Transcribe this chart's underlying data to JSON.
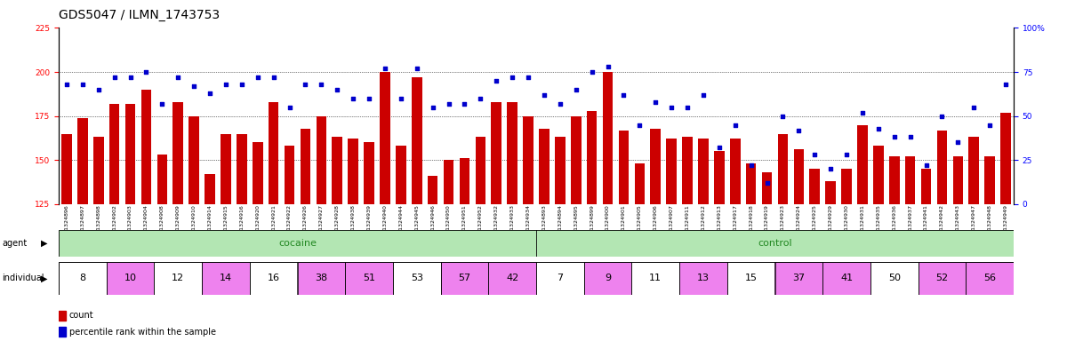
{
  "title": "GDS5047 / ILMN_1743753",
  "samples_cocaine": [
    "GSM1324896",
    "GSM1324897",
    "GSM1324898",
    "GSM1324902",
    "GSM1324903",
    "GSM1324904",
    "GSM1324908",
    "GSM1324909",
    "GSM1324910",
    "GSM1324914",
    "GSM1324915",
    "GSM1324916",
    "GSM1324920",
    "GSM1324921",
    "GSM1324922",
    "GSM1324926",
    "GSM1324927",
    "GSM1324928",
    "GSM1324938",
    "GSM1324939",
    "GSM1324940",
    "GSM1324944",
    "GSM1324945",
    "GSM1324946",
    "GSM1324950",
    "GSM1324951",
    "GSM1324952",
    "GSM1324932",
    "GSM1324933",
    "GSM1324934"
  ],
  "samples_control": [
    "GSM1324893",
    "GSM1324894",
    "GSM1324895",
    "GSM1324899",
    "GSM1324900",
    "GSM1324901",
    "GSM1324905",
    "GSM1324906",
    "GSM1324907",
    "GSM1324911",
    "GSM1324912",
    "GSM1324913",
    "GSM1324917",
    "GSM1324918",
    "GSM1324919",
    "GSM1324923",
    "GSM1324924",
    "GSM1324925",
    "GSM1324929",
    "GSM1324930",
    "GSM1324931",
    "GSM1324935",
    "GSM1324936",
    "GSM1324937",
    "GSM1324941",
    "GSM1324942",
    "GSM1324943",
    "GSM1324947",
    "GSM1324948",
    "GSM1324949"
  ],
  "counts_cocaine": [
    165,
    174,
    163,
    182,
    182,
    190,
    153,
    183,
    175,
    142,
    165,
    165,
    160,
    183,
    158,
    168,
    175,
    163,
    162,
    160,
    200,
    158,
    197,
    141,
    150,
    151,
    163,
    183,
    183,
    175
  ],
  "counts_control": [
    168,
    163,
    175,
    178,
    200,
    167,
    148,
    168,
    162,
    163,
    162,
    155,
    162,
    148,
    143,
    165,
    156,
    145,
    138,
    145,
    170,
    158,
    152,
    152,
    145,
    167,
    152,
    163,
    152,
    177
  ],
  "pct_cocaine": [
    68,
    68,
    65,
    72,
    72,
    75,
    57,
    72,
    67,
    63,
    68,
    68,
    72,
    72,
    55,
    68,
    68,
    65,
    60,
    60,
    77,
    60,
    77,
    55,
    57,
    57,
    60,
    70,
    72,
    72
  ],
  "pct_control": [
    62,
    57,
    65,
    75,
    78,
    62,
    45,
    58,
    55,
    55,
    62,
    32,
    45,
    22,
    12,
    50,
    42,
    28,
    20,
    28,
    52,
    43,
    38,
    38,
    22,
    50,
    35,
    55,
    45,
    68
  ],
  "ylim_left": [
    125,
    225
  ],
  "ylim_right": [
    0,
    100
  ],
  "yticks_left": [
    125,
    150,
    175,
    200,
    225
  ],
  "yticks_right": [
    0,
    25,
    50,
    75,
    100
  ],
  "bar_color": "#cc0000",
  "dot_color": "#0000cc",
  "cocaine_bg": "#b3e6b3",
  "control_bg": "#b3e6b3",
  "individual_bg_pink": "#ee82ee",
  "individual_bg_white": "#ffffff",
  "agent_label_color": "#228822",
  "title_fontsize": 10,
  "tick_fontsize": 6.5,
  "xtick_fontsize": 4.5,
  "label_fontsize": 8,
  "indiv_groups_cocaine": [
    "8",
    "10",
    "12",
    "14",
    "16",
    "38",
    "51",
    "53",
    "57",
    "42"
  ],
  "indiv_groups_control": [
    "7",
    "9",
    "11",
    "13",
    "15",
    "37",
    "41",
    "50",
    "52",
    "56"
  ],
  "indiv_colors_cocaine": [
    0,
    1,
    0,
    1,
    0,
    1,
    1,
    0,
    1,
    1
  ],
  "indiv_colors_control": [
    0,
    1,
    0,
    1,
    0,
    1,
    1,
    0,
    1,
    1
  ],
  "group_size": 3
}
